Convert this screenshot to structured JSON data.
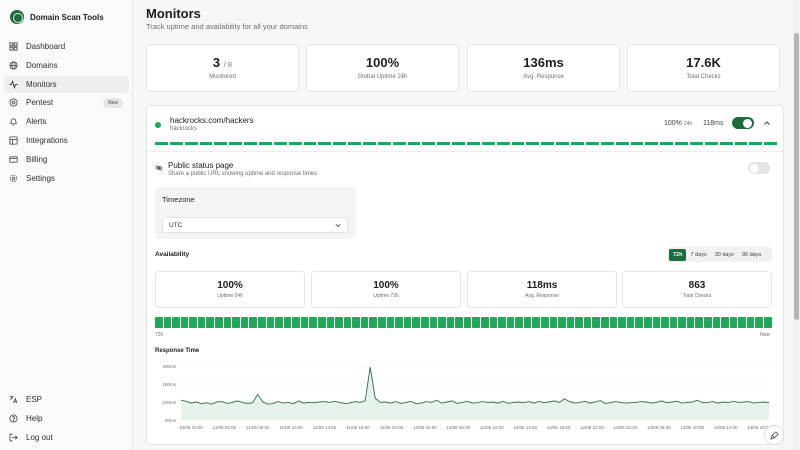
{
  "brand": {
    "name": "Domain Scan Tools"
  },
  "nav": [
    {
      "label": "Dashboard",
      "icon": "dashboard-icon"
    },
    {
      "label": "Domains",
      "icon": "globe-icon"
    },
    {
      "label": "Monitors",
      "icon": "activity-icon",
      "active": true
    },
    {
      "label": "Pentest",
      "icon": "target-icon",
      "badge": "New"
    },
    {
      "label": "Alerts",
      "icon": "bell-icon"
    },
    {
      "label": "Integrations",
      "icon": "integrations-icon"
    },
    {
      "label": "Billing",
      "icon": "card-icon"
    },
    {
      "label": "Settings",
      "icon": "gear-icon"
    }
  ],
  "nav_bottom": [
    {
      "label": "ESP",
      "icon": "language-icon"
    },
    {
      "label": "Help",
      "icon": "help-icon"
    },
    {
      "label": "Log out",
      "icon": "logout-icon"
    }
  ],
  "page": {
    "title": "Monitors",
    "subtitle": "Track uptime and availability for all your domains"
  },
  "stats": [
    {
      "value": "3",
      "suffix": "/ 8",
      "label": "Monitored"
    },
    {
      "value": "100%",
      "label": "Global Uptime 24h"
    },
    {
      "value": "136ms",
      "label": "Avg. Response"
    },
    {
      "value": "17.6K",
      "label": "Total Checks"
    }
  ],
  "monitor": {
    "name": "hackrocks.com/hackers",
    "host": "hackrocks",
    "uptime": "100%",
    "uptime_period": "24h",
    "response": "118ms",
    "enabled": true,
    "public_status": {
      "title": "Public status page",
      "description": "Share a public URL showing uptime and response times",
      "enabled": false
    },
    "timezone": {
      "label": "Timezone",
      "value": "UTC"
    },
    "availability": {
      "label": "Availability",
      "ranges": [
        "72h",
        "7 days",
        "30 days",
        "90 days"
      ],
      "active_range": "72h",
      "cards": [
        {
          "value": "100%",
          "label": "Uptime 24h"
        },
        {
          "value": "100%",
          "label": "Uptime 72h"
        },
        {
          "value": "118ms",
          "label": "Avg. Response"
        },
        {
          "value": "863",
          "label": "Total Checks"
        }
      ],
      "bar_start": "72h",
      "bar_end": "Now"
    },
    "response_time_label": "Response Time"
  },
  "colors": {
    "accent": "#1f6a3f",
    "up": "#22a65a"
  },
  "chart_data": {
    "type": "area",
    "title": "Response Time",
    "xlabel": "",
    "ylabel": "",
    "ylim": [
      50,
      200
    ],
    "yticks": [
      50,
      100,
      150,
      200
    ],
    "ytick_labels": [
      "50ms",
      "100ms",
      "150ms",
      "200ms"
    ],
    "grid": true,
    "xtick_labels": [
      "10/05 22:00",
      "11/05 02:00",
      "11/05 06:00",
      "11/05 10:00",
      "11/05 14:00",
      "11/05 18:00",
      "11/05 22:00",
      "12/05 02:00",
      "12/05 06:00",
      "12/05 10:00",
      "12/05 14:00",
      "12/05 18:00",
      "12/05 22:00",
      "13/05 02:00",
      "13/05 06:00",
      "13/05 10:00",
      "13/05 14:00",
      "13/05 18:00"
    ],
    "series": [
      {
        "values": [
          105,
          102,
          97,
          100,
          95,
          98,
          94,
          100,
          101,
          96,
          99,
          103,
          99,
          96,
          98,
          121,
          100,
          94,
          96,
          101,
          97,
          99,
          95,
          103,
          97,
          99,
          98,
          100,
          101,
          99,
          102,
          99,
          96,
          97,
          101,
          99,
          103,
          197,
          110,
          99,
          100,
          97,
          101,
          96,
          99,
          102,
          95,
          97,
          101,
          99,
          105,
          97,
          100,
          103,
          96,
          99,
          102,
          97,
          98,
          101,
          99,
          100,
          97,
          102,
          96,
          99,
          100,
          98,
          101,
          97,
          102,
          98,
          100,
          103,
          99,
          109,
          101,
          97,
          99,
          102,
          97,
          100,
          104,
          96,
          98,
          101,
          99,
          97,
          98,
          99,
          101,
          100,
          97,
          99,
          103,
          98,
          100,
          102,
          97,
          99,
          100,
          105,
          98,
          99,
          101,
          97,
          100,
          98,
          102,
          99,
          100,
          101,
          97,
          99,
          100,
          98
        ]
      }
    ]
  }
}
